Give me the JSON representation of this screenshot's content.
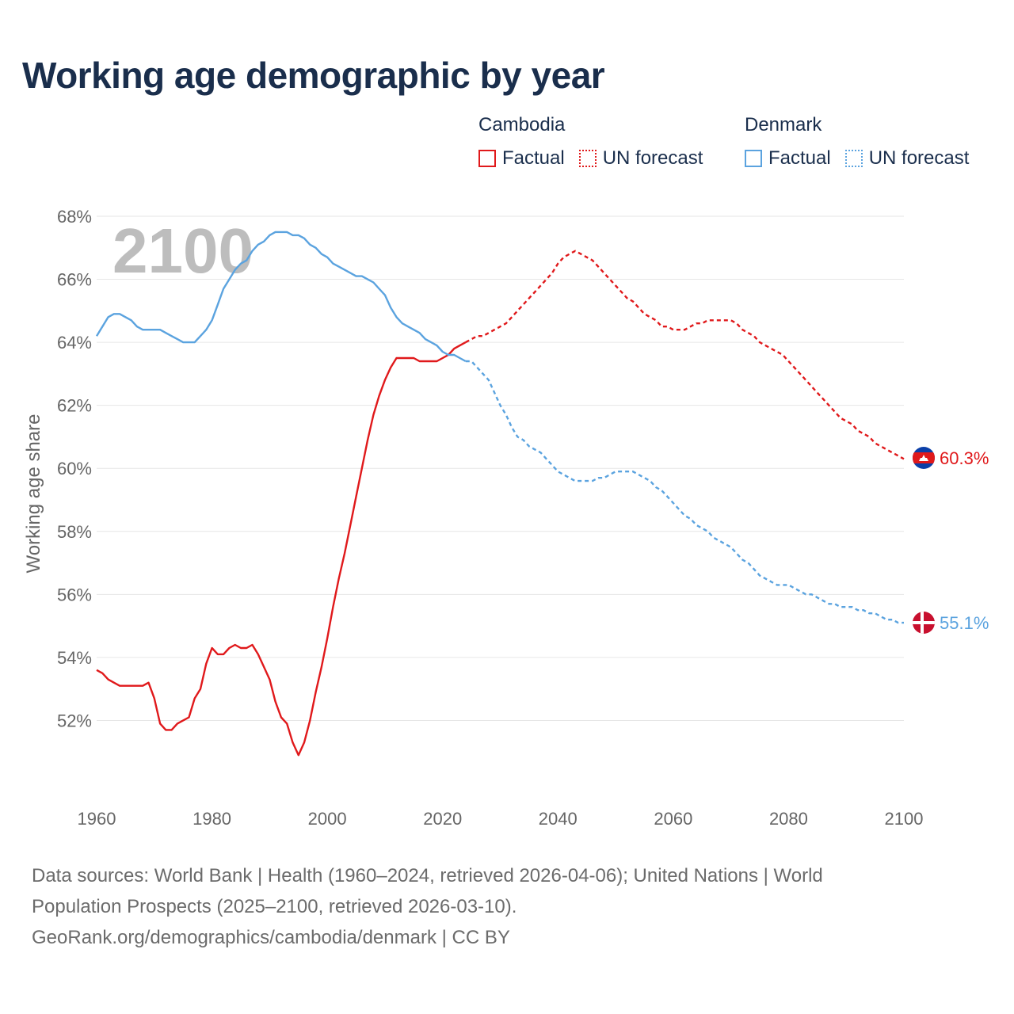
{
  "title": "Working age demographic by year",
  "year_watermark": "2100",
  "legend": {
    "groups": [
      {
        "country": "Cambodia",
        "color": "#e0191b",
        "factual_label": "Factual",
        "forecast_label": "UN forecast"
      },
      {
        "country": "Denmark",
        "color": "#5ba3df",
        "factual_label": "Factual",
        "forecast_label": "UN forecast"
      }
    ]
  },
  "footer": {
    "line1": "Data sources: World Bank | Health (1960–2024, retrieved 2026-04-06); United Nations | World",
    "line2": "Population Prospects (2025–2100, retrieved 2026-03-10).",
    "line3": "GeoRank.org/demographics/cambodia/denmark | CC BY"
  },
  "chart_data": {
    "type": "line",
    "title": "Working age demographic by year",
    "xlabel": "",
    "ylabel": "Working age share",
    "xlim": [
      1960,
      2100
    ],
    "ylim": [
      50,
      68
    ],
    "x_ticks": [
      1960,
      1980,
      2000,
      2020,
      2040,
      2060,
      2080,
      2100
    ],
    "y_ticks": [
      52,
      54,
      56,
      58,
      60,
      62,
      64,
      66,
      68
    ],
    "y_tick_labels": [
      "52%",
      "54%",
      "56%",
      "58%",
      "60%",
      "62%",
      "64%",
      "66%",
      "68%"
    ],
    "grid": true,
    "legend_position": "top-right",
    "factual_until": 2024,
    "series": [
      {
        "name": "Cambodia",
        "color": "#e0191b",
        "end_label": "60.3%",
        "points": [
          [
            1960,
            53.6
          ],
          [
            1961,
            53.5
          ],
          [
            1962,
            53.3
          ],
          [
            1963,
            53.2
          ],
          [
            1964,
            53.1
          ],
          [
            1965,
            53.1
          ],
          [
            1966,
            53.1
          ],
          [
            1967,
            53.1
          ],
          [
            1968,
            53.1
          ],
          [
            1969,
            53.2
          ],
          [
            1970,
            52.7
          ],
          [
            1971,
            51.9
          ],
          [
            1972,
            51.7
          ],
          [
            1973,
            51.7
          ],
          [
            1974,
            51.9
          ],
          [
            1975,
            52.0
          ],
          [
            1976,
            52.1
          ],
          [
            1977,
            52.7
          ],
          [
            1978,
            53.0
          ],
          [
            1979,
            53.8
          ],
          [
            1980,
            54.3
          ],
          [
            1981,
            54.1
          ],
          [
            1982,
            54.1
          ],
          [
            1983,
            54.3
          ],
          [
            1984,
            54.4
          ],
          [
            1985,
            54.3
          ],
          [
            1986,
            54.3
          ],
          [
            1987,
            54.4
          ],
          [
            1988,
            54.1
          ],
          [
            1989,
            53.7
          ],
          [
            1990,
            53.3
          ],
          [
            1991,
            52.6
          ],
          [
            1992,
            52.1
          ],
          [
            1993,
            51.9
          ],
          [
            1994,
            51.3
          ],
          [
            1995,
            50.9
          ],
          [
            1996,
            51.3
          ],
          [
            1997,
            52.0
          ],
          [
            1998,
            52.9
          ],
          [
            1999,
            53.7
          ],
          [
            2000,
            54.6
          ],
          [
            2001,
            55.6
          ],
          [
            2002,
            56.5
          ],
          [
            2003,
            57.3
          ],
          [
            2004,
            58.2
          ],
          [
            2005,
            59.1
          ],
          [
            2006,
            60.0
          ],
          [
            2007,
            60.9
          ],
          [
            2008,
            61.7
          ],
          [
            2009,
            62.3
          ],
          [
            2010,
            62.8
          ],
          [
            2011,
            63.2
          ],
          [
            2012,
            63.5
          ],
          [
            2013,
            63.5
          ],
          [
            2014,
            63.5
          ],
          [
            2015,
            63.5
          ],
          [
            2016,
            63.4
          ],
          [
            2017,
            63.4
          ],
          [
            2018,
            63.4
          ],
          [
            2019,
            63.4
          ],
          [
            2020,
            63.5
          ],
          [
            2021,
            63.6
          ],
          [
            2022,
            63.8
          ],
          [
            2023,
            63.9
          ],
          [
            2024,
            64.0
          ],
          [
            2025,
            64.1
          ],
          [
            2026,
            64.2
          ],
          [
            2027,
            64.2
          ],
          [
            2028,
            64.3
          ],
          [
            2029,
            64.4
          ],
          [
            2030,
            64.5
          ],
          [
            2031,
            64.6
          ],
          [
            2032,
            64.8
          ],
          [
            2033,
            65.0
          ],
          [
            2034,
            65.2
          ],
          [
            2035,
            65.4
          ],
          [
            2036,
            65.6
          ],
          [
            2037,
            65.8
          ],
          [
            2038,
            66.0
          ],
          [
            2039,
            66.2
          ],
          [
            2040,
            66.5
          ],
          [
            2041,
            66.7
          ],
          [
            2042,
            66.8
          ],
          [
            2043,
            66.9
          ],
          [
            2044,
            66.8
          ],
          [
            2045,
            66.7
          ],
          [
            2046,
            66.6
          ],
          [
            2047,
            66.4
          ],
          [
            2048,
            66.2
          ],
          [
            2049,
            66.0
          ],
          [
            2050,
            65.8
          ],
          [
            2051,
            65.6
          ],
          [
            2052,
            65.4
          ],
          [
            2053,
            65.3
          ],
          [
            2054,
            65.1
          ],
          [
            2055,
            64.9
          ],
          [
            2056,
            64.8
          ],
          [
            2057,
            64.7
          ],
          [
            2058,
            64.5
          ],
          [
            2059,
            64.5
          ],
          [
            2060,
            64.4
          ],
          [
            2061,
            64.4
          ],
          [
            2062,
            64.4
          ],
          [
            2063,
            64.5
          ],
          [
            2064,
            64.6
          ],
          [
            2065,
            64.6
          ],
          [
            2066,
            64.7
          ],
          [
            2067,
            64.7
          ],
          [
            2068,
            64.7
          ],
          [
            2069,
            64.7
          ],
          [
            2070,
            64.7
          ],
          [
            2071,
            64.6
          ],
          [
            2072,
            64.4
          ],
          [
            2073,
            64.3
          ],
          [
            2074,
            64.2
          ],
          [
            2075,
            64.0
          ],
          [
            2076,
            63.9
          ],
          [
            2077,
            63.8
          ],
          [
            2078,
            63.7
          ],
          [
            2079,
            63.6
          ],
          [
            2080,
            63.4
          ],
          [
            2081,
            63.2
          ],
          [
            2082,
            63.0
          ],
          [
            2083,
            62.8
          ],
          [
            2084,
            62.6
          ],
          [
            2085,
            62.4
          ],
          [
            2086,
            62.2
          ],
          [
            2087,
            62.0
          ],
          [
            2088,
            61.8
          ],
          [
            2089,
            61.6
          ],
          [
            2090,
            61.5
          ],
          [
            2091,
            61.4
          ],
          [
            2092,
            61.2
          ],
          [
            2093,
            61.1
          ],
          [
            2094,
            61.0
          ],
          [
            2095,
            60.8
          ],
          [
            2096,
            60.7
          ],
          [
            2097,
            60.6
          ],
          [
            2098,
            60.5
          ],
          [
            2099,
            60.4
          ],
          [
            2100,
            60.3
          ]
        ]
      },
      {
        "name": "Denmark",
        "color": "#5ba3df",
        "end_label": "55.1%",
        "points": [
          [
            1960,
            64.2
          ],
          [
            1961,
            64.5
          ],
          [
            1962,
            64.8
          ],
          [
            1963,
            64.9
          ],
          [
            1964,
            64.9
          ],
          [
            1965,
            64.8
          ],
          [
            1966,
            64.7
          ],
          [
            1967,
            64.5
          ],
          [
            1968,
            64.4
          ],
          [
            1969,
            64.4
          ],
          [
            1970,
            64.4
          ],
          [
            1971,
            64.4
          ],
          [
            1972,
            64.3
          ],
          [
            1973,
            64.2
          ],
          [
            1974,
            64.1
          ],
          [
            1975,
            64.0
          ],
          [
            1976,
            64.0
          ],
          [
            1977,
            64.0
          ],
          [
            1978,
            64.2
          ],
          [
            1979,
            64.4
          ],
          [
            1980,
            64.7
          ],
          [
            1981,
            65.2
          ],
          [
            1982,
            65.7
          ],
          [
            1983,
            66.0
          ],
          [
            1984,
            66.3
          ],
          [
            1985,
            66.5
          ],
          [
            1986,
            66.6
          ],
          [
            1987,
            66.9
          ],
          [
            1988,
            67.1
          ],
          [
            1989,
            67.2
          ],
          [
            1990,
            67.4
          ],
          [
            1991,
            67.5
          ],
          [
            1992,
            67.5
          ],
          [
            1993,
            67.5
          ],
          [
            1994,
            67.4
          ],
          [
            1995,
            67.4
          ],
          [
            1996,
            67.3
          ],
          [
            1997,
            67.1
          ],
          [
            1998,
            67.0
          ],
          [
            1999,
            66.8
          ],
          [
            2000,
            66.7
          ],
          [
            2001,
            66.5
          ],
          [
            2002,
            66.4
          ],
          [
            2003,
            66.3
          ],
          [
            2004,
            66.2
          ],
          [
            2005,
            66.1
          ],
          [
            2006,
            66.1
          ],
          [
            2007,
            66.0
          ],
          [
            2008,
            65.9
          ],
          [
            2009,
            65.7
          ],
          [
            2010,
            65.5
          ],
          [
            2011,
            65.1
          ],
          [
            2012,
            64.8
          ],
          [
            2013,
            64.6
          ],
          [
            2014,
            64.5
          ],
          [
            2015,
            64.4
          ],
          [
            2016,
            64.3
          ],
          [
            2017,
            64.1
          ],
          [
            2018,
            64.0
          ],
          [
            2019,
            63.9
          ],
          [
            2020,
            63.7
          ],
          [
            2021,
            63.6
          ],
          [
            2022,
            63.6
          ],
          [
            2023,
            63.5
          ],
          [
            2024,
            63.4
          ],
          [
            2025,
            63.4
          ],
          [
            2026,
            63.2
          ],
          [
            2027,
            63.0
          ],
          [
            2028,
            62.8
          ],
          [
            2029,
            62.4
          ],
          [
            2030,
            62.0
          ],
          [
            2031,
            61.7
          ],
          [
            2032,
            61.3
          ],
          [
            2033,
            61.0
          ],
          [
            2034,
            60.9
          ],
          [
            2035,
            60.7
          ],
          [
            2036,
            60.6
          ],
          [
            2037,
            60.5
          ],
          [
            2038,
            60.3
          ],
          [
            2039,
            60.1
          ],
          [
            2040,
            59.9
          ],
          [
            2041,
            59.8
          ],
          [
            2042,
            59.7
          ],
          [
            2043,
            59.6
          ],
          [
            2044,
            59.6
          ],
          [
            2045,
            59.6
          ],
          [
            2046,
            59.6
          ],
          [
            2047,
            59.7
          ],
          [
            2048,
            59.7
          ],
          [
            2049,
            59.8
          ],
          [
            2050,
            59.9
          ],
          [
            2051,
            59.9
          ],
          [
            2052,
            59.9
          ],
          [
            2053,
            59.9
          ],
          [
            2054,
            59.8
          ],
          [
            2055,
            59.7
          ],
          [
            2056,
            59.6
          ],
          [
            2057,
            59.4
          ],
          [
            2058,
            59.3
          ],
          [
            2059,
            59.1
          ],
          [
            2060,
            58.9
          ],
          [
            2061,
            58.7
          ],
          [
            2062,
            58.5
          ],
          [
            2063,
            58.4
          ],
          [
            2064,
            58.2
          ],
          [
            2065,
            58.1
          ],
          [
            2066,
            58.0
          ],
          [
            2067,
            57.8
          ],
          [
            2068,
            57.7
          ],
          [
            2069,
            57.6
          ],
          [
            2070,
            57.5
          ],
          [
            2071,
            57.3
          ],
          [
            2072,
            57.1
          ],
          [
            2073,
            57.0
          ],
          [
            2074,
            56.8
          ],
          [
            2075,
            56.6
          ],
          [
            2076,
            56.5
          ],
          [
            2077,
            56.4
          ],
          [
            2078,
            56.3
          ],
          [
            2079,
            56.3
          ],
          [
            2080,
            56.3
          ],
          [
            2081,
            56.2
          ],
          [
            2082,
            56.1
          ],
          [
            2083,
            56.0
          ],
          [
            2084,
            56.0
          ],
          [
            2085,
            55.9
          ],
          [
            2086,
            55.8
          ],
          [
            2087,
            55.7
          ],
          [
            2088,
            55.7
          ],
          [
            2089,
            55.6
          ],
          [
            2090,
            55.6
          ],
          [
            2091,
            55.6
          ],
          [
            2092,
            55.5
          ],
          [
            2093,
            55.5
          ],
          [
            2094,
            55.4
          ],
          [
            2095,
            55.4
          ],
          [
            2096,
            55.3
          ],
          [
            2097,
            55.2
          ],
          [
            2098,
            55.2
          ],
          [
            2099,
            55.1
          ],
          [
            2100,
            55.1
          ]
        ]
      }
    ]
  }
}
